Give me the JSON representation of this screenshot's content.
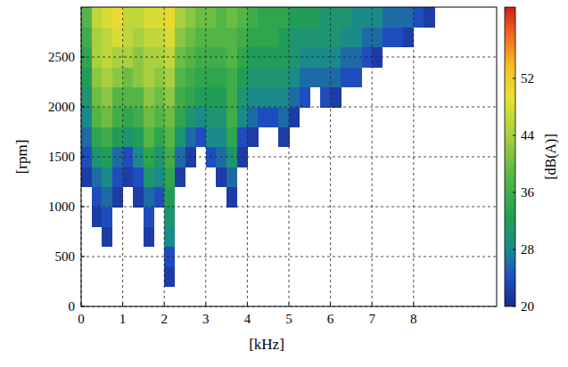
{
  "chart_data": {
    "type": "heatmap",
    "x_label": "[kHz]",
    "y_label": "[rpm]",
    "x": [
      0.125,
      0.375,
      0.625,
      0.875,
      1.125,
      1.375,
      1.625,
      1.875,
      2.125,
      2.375,
      2.625,
      2.875,
      3.125,
      3.375,
      3.625,
      3.875,
      4.125,
      4.375,
      4.625,
      4.875,
      5.125,
      5.375,
      5.625,
      5.875,
      6.125,
      6.375,
      6.625,
      6.875,
      7.125,
      7.375,
      7.625,
      7.875,
      8.125,
      8.375
    ],
    "y": [
      300,
      500,
      700,
      900,
      1100,
      1300,
      1500,
      1700,
      1900,
      2100,
      2300,
      2500,
      2700,
      2900
    ],
    "values": [
      [
        null,
        null,
        null,
        null,
        null,
        null,
        null,
        null,
        22,
        null,
        null,
        null,
        null,
        null,
        null,
        null,
        null,
        null,
        null,
        null,
        null,
        null,
        null,
        null,
        null,
        null,
        null,
        null,
        null,
        null,
        null,
        null,
        null,
        null
      ],
      [
        null,
        null,
        null,
        null,
        null,
        null,
        null,
        null,
        24,
        null,
        null,
        null,
        null,
        null,
        null,
        null,
        null,
        null,
        null,
        null,
        null,
        null,
        null,
        null,
        null,
        null,
        null,
        null,
        null,
        null,
        null,
        null,
        null,
        null
      ],
      [
        null,
        null,
        22,
        null,
        null,
        null,
        22,
        null,
        28,
        null,
        null,
        null,
        null,
        null,
        null,
        null,
        null,
        null,
        null,
        null,
        null,
        null,
        null,
        null,
        null,
        null,
        null,
        null,
        null,
        null,
        null,
        null,
        null,
        null
      ],
      [
        null,
        22,
        24,
        null,
        null,
        null,
        24,
        null,
        30,
        null,
        null,
        null,
        null,
        null,
        null,
        null,
        null,
        null,
        null,
        null,
        null,
        null,
        null,
        null,
        null,
        null,
        null,
        null,
        null,
        null,
        null,
        null,
        null,
        null
      ],
      [
        null,
        24,
        26,
        22,
        null,
        22,
        26,
        24,
        32,
        null,
        null,
        null,
        null,
        null,
        22,
        null,
        null,
        null,
        null,
        null,
        null,
        null,
        null,
        null,
        null,
        null,
        null,
        null,
        null,
        null,
        null,
        null,
        null,
        null
      ],
      [
        22,
        26,
        28,
        24,
        22,
        24,
        30,
        28,
        34,
        22,
        null,
        null,
        null,
        22,
        26,
        null,
        null,
        null,
        null,
        null,
        null,
        null,
        null,
        null,
        null,
        null,
        null,
        null,
        null,
        null,
        null,
        null,
        null,
        null
      ],
      [
        24,
        30,
        32,
        26,
        24,
        28,
        34,
        30,
        36,
        26,
        22,
        null,
        24,
        26,
        30,
        22,
        null,
        null,
        null,
        null,
        null,
        null,
        null,
        null,
        null,
        null,
        null,
        null,
        null,
        null,
        null,
        null,
        null,
        null
      ],
      [
        26,
        34,
        36,
        32,
        30,
        32,
        38,
        34,
        38,
        30,
        26,
        24,
        28,
        28,
        34,
        24,
        22,
        null,
        null,
        22,
        null,
        null,
        null,
        null,
        null,
        null,
        null,
        null,
        null,
        null,
        null,
        null,
        null,
        null
      ],
      [
        28,
        38,
        40,
        36,
        34,
        36,
        40,
        38,
        40,
        34,
        30,
        28,
        30,
        30,
        36,
        28,
        26,
        24,
        24,
        26,
        22,
        null,
        null,
        null,
        null,
        null,
        null,
        null,
        null,
        null,
        null,
        null,
        null,
        null
      ],
      [
        30,
        40,
        42,
        38,
        38,
        38,
        42,
        40,
        42,
        36,
        34,
        32,
        32,
        32,
        36,
        30,
        28,
        28,
        28,
        28,
        26,
        24,
        null,
        24,
        22,
        null,
        null,
        null,
        null,
        null,
        null,
        null,
        null,
        null
      ],
      [
        32,
        42,
        44,
        42,
        40,
        42,
        44,
        42,
        44,
        38,
        36,
        34,
        34,
        34,
        36,
        32,
        30,
        30,
        30,
        30,
        28,
        26,
        26,
        26,
        26,
        24,
        24,
        null,
        null,
        null,
        null,
        null,
        null,
        null
      ],
      [
        34,
        44,
        46,
        44,
        44,
        42,
        44,
        44,
        46,
        40,
        38,
        36,
        36,
        36,
        38,
        34,
        32,
        32,
        32,
        32,
        30,
        28,
        28,
        28,
        28,
        26,
        26,
        24,
        22,
        null,
        null,
        null,
        null,
        null
      ],
      [
        36,
        44,
        46,
        48,
        46,
        44,
        46,
        46,
        48,
        42,
        40,
        38,
        38,
        38,
        38,
        36,
        34,
        34,
        34,
        32,
        30,
        30,
        30,
        30,
        30,
        28,
        28,
        26,
        26,
        24,
        24,
        22,
        null,
        null
      ],
      [
        38,
        46,
        48,
        50,
        46,
        46,
        48,
        48,
        50,
        44,
        42,
        40,
        40,
        38,
        40,
        38,
        36,
        34,
        34,
        34,
        32,
        32,
        32,
        30,
        30,
        30,
        28,
        28,
        28,
        26,
        26,
        26,
        24,
        22
      ]
    ],
    "xlim": [
      0,
      10
    ],
    "xticks": [
      0,
      1,
      2,
      3,
      4,
      5,
      6,
      7,
      8
    ],
    "ylim": [
      0,
      3000
    ],
    "yticks": [
      0,
      500,
      1000,
      1500,
      2000,
      2500
    ],
    "grid": true,
    "colorbar": {
      "label": "[dB(A)]",
      "range": [
        20,
        62
      ],
      "ticks": [
        20,
        28,
        36,
        44,
        52
      ]
    }
  }
}
